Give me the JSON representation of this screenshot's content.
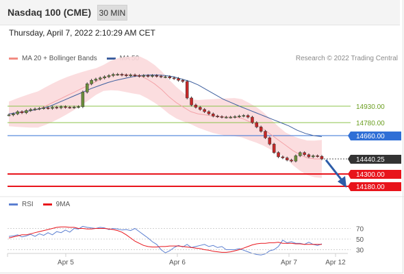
{
  "header": {
    "instrument": "Nasdaq 100 (CME)",
    "timeframe": "30 MIN"
  },
  "timestamp": "Thursday, April 7, 2022 2:10:29 AM CET",
  "copyright": "Research © 2022 Trading Central",
  "colors": {
    "bollinger": "#f28b82",
    "ma50": "#3d5f9e",
    "green_level": "#8bc34a",
    "blue_level": "#2f6fd6",
    "red_level": "#e8141b",
    "rsi": "#5b7fd1",
    "rsi_ma": "#e8141b",
    "last_price_tag": "#333333",
    "arrow": "#2d5ca8"
  },
  "chart_data": [
    {
      "type": "candlestick",
      "title": "",
      "legend": [
        {
          "name": "MA 20 + Bollinger Bands"
        },
        {
          "name": "MA 50"
        }
      ],
      "x_tick_labels": [
        "Apr 5",
        "Apr 6",
        "Apr 7",
        "Apr 12"
      ],
      "y_range": [
        14135,
        14800
      ],
      "levels": [
        {
          "label": "14930.00",
          "value": 14930,
          "kind": "resistance",
          "color": "green"
        },
        {
          "label": "14780.00",
          "value": 14780,
          "kind": "resistance",
          "color": "green"
        },
        {
          "label": "14660.00",
          "value": 14660,
          "kind": "pivot",
          "color": "blue"
        },
        {
          "label": "14300.00",
          "value": 14300,
          "kind": "support",
          "color": "red"
        },
        {
          "label": "14180.00",
          "value": 14180,
          "kind": "support",
          "color": "red"
        }
      ],
      "last_price": {
        "label": "14440.25",
        "value": 14440.25
      },
      "close_series": [
        14850,
        14860,
        14880,
        14870,
        14890,
        14900,
        14905,
        14910,
        14915,
        14910,
        14920,
        14915,
        14925,
        14920,
        14918,
        14922,
        14925,
        15050,
        15120,
        15150,
        15160,
        15170,
        15180,
        15190,
        15200,
        15200,
        15195,
        15190,
        15195,
        15190,
        15185,
        15190,
        15185,
        15190,
        15185,
        15180,
        15180,
        15170,
        15165,
        15150,
        15140,
        15000,
        14940,
        14920,
        14900,
        14880,
        14860,
        14840,
        14835,
        14830,
        14830,
        14830,
        14835,
        14840,
        14845,
        14830,
        14780,
        14740,
        14700,
        14640,
        14580,
        14500,
        14460,
        14450,
        14430,
        14420,
        14470,
        14500,
        14480,
        14460,
        14470,
        14465,
        14440
      ],
      "ma20_series": [
        14860,
        14870,
        14880,
        14890,
        14900,
        14930,
        14960,
        14990,
        15020,
        15050,
        15080,
        15110,
        15140,
        15170,
        15190,
        15200,
        15200,
        15195,
        15190,
        15160,
        15120,
        15070,
        15010,
        14960,
        14920,
        14880,
        14860,
        14850,
        14840,
        14835,
        14830,
        14830,
        14820,
        14790,
        14760,
        14720,
        14670,
        14620,
        14570,
        14520,
        14480,
        14450,
        14440,
        14440
      ],
      "ma50_series": [
        14860,
        14870,
        14880,
        14895,
        14910,
        14930,
        14960,
        14990,
        15020,
        15050,
        15080,
        15105,
        15130,
        15150,
        15165,
        15180,
        15190,
        15195,
        15195,
        15190,
        15180,
        15160,
        15140,
        15110,
        15070,
        15030,
        14990,
        14960,
        14930,
        14900,
        14870,
        14840,
        14810,
        14780,
        14750,
        14710,
        14680,
        14660,
        14650
      ],
      "forecast_arrow": {
        "from": 14430,
        "to": 14180
      }
    },
    {
      "type": "line",
      "title": "",
      "legend": [
        {
          "name": "RSI"
        },
        {
          "name": "9MA"
        }
      ],
      "y_tick_labels": [
        "70",
        "50",
        "30"
      ],
      "y_levels": [
        70,
        50,
        30
      ],
      "y_range": [
        10,
        90
      ],
      "series": [
        {
          "name": "RSI",
          "values": [
            55,
            56,
            58,
            54,
            56,
            59,
            55,
            60,
            57,
            62,
            58,
            64,
            62,
            67,
            63,
            70,
            69,
            74,
            72,
            71,
            70,
            72,
            71,
            68,
            70,
            69,
            67,
            68,
            66,
            70,
            64,
            58,
            52,
            45,
            40,
            30,
            24,
            28,
            34,
            38,
            35,
            40,
            34,
            36,
            38,
            40,
            36,
            38,
            34,
            36,
            30,
            30,
            30,
            32,
            29,
            26,
            23,
            21,
            20,
            22,
            28,
            30,
            36,
            48,
            43,
            45,
            42,
            42,
            40,
            44,
            40,
            38,
            41
          ]
        },
        {
          "name": "9MA",
          "values": [
            52,
            54,
            56,
            58,
            58,
            60,
            62,
            64,
            66,
            68,
            70,
            72,
            73,
            73,
            72,
            72,
            70,
            70,
            69,
            69,
            70,
            70,
            70,
            69,
            68,
            66,
            63,
            58,
            52,
            46,
            42,
            38,
            36,
            35,
            35,
            36,
            36,
            37,
            37,
            37,
            36,
            35,
            34,
            33,
            32,
            30,
            29,
            27,
            26,
            25,
            25,
            26,
            28,
            30,
            33,
            36,
            39,
            41,
            42,
            42,
            43,
            43,
            44,
            42,
            42,
            42,
            41,
            41,
            40,
            40,
            40,
            40,
            40
          ]
        }
      ]
    }
  ]
}
